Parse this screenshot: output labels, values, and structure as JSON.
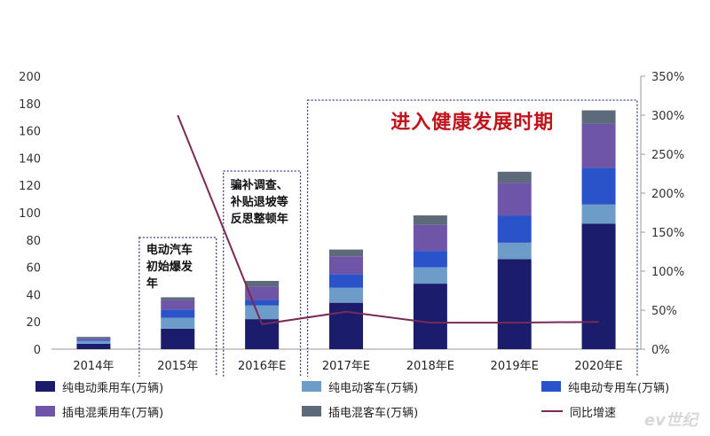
{
  "chart_data": {
    "type": "bar",
    "stacked": true,
    "categories": [
      "2014年",
      "2015年",
      "2016年E",
      "2017年E",
      "2018年E",
      "2019年E",
      "2020年E"
    ],
    "series": [
      {
        "name": "纯电动乘用车(万辆)",
        "color": "#1b1c6b",
        "values": [
          4,
          15,
          22,
          34,
          48,
          66,
          92
        ]
      },
      {
        "name": "纯电动客车(万辆)",
        "color": "#6d9cc8",
        "values": [
          2,
          8,
          10,
          11,
          12,
          12,
          14
        ]
      },
      {
        "name": "纯电动专用车(万辆)",
        "color": "#2a52c9",
        "values": [
          1,
          6,
          4,
          10,
          12,
          20,
          27
        ]
      },
      {
        "name": "插电混乘用车(万辆)",
        "color": "#6f55a8",
        "values": [
          1,
          7,
          10,
          13,
          19,
          24,
          32
        ]
      },
      {
        "name": "插电混客车(万辆)",
        "color": "#5c6a7a",
        "values": [
          1,
          2,
          4,
          5,
          7,
          8,
          10
        ]
      }
    ],
    "line_series": {
      "name": "同比增速",
      "color": "#7a2a55",
      "values": [
        null,
        300,
        32,
        48,
        34,
        34,
        35
      ],
      "unit": "%"
    },
    "y_left": {
      "min": 0,
      "max": 200,
      "step": 20,
      "ticks": [
        "0",
        "20",
        "40",
        "60",
        "80",
        "100",
        "120",
        "140",
        "160",
        "180",
        "200"
      ]
    },
    "y_right": {
      "min": 0,
      "max": 350,
      "step": 50,
      "ticks": [
        "0%",
        "50%",
        "100%",
        "150%",
        "200%",
        "250%",
        "300%",
        "350%"
      ]
    },
    "annotations": {
      "box_2015": "电动汽车初始爆发年",
      "box_2016": "骗补调查、补贴退坡等反思整顿年",
      "headline": "进入健康发展时期"
    },
    "legend_position": "bottom"
  },
  "watermark": "ev世纪"
}
